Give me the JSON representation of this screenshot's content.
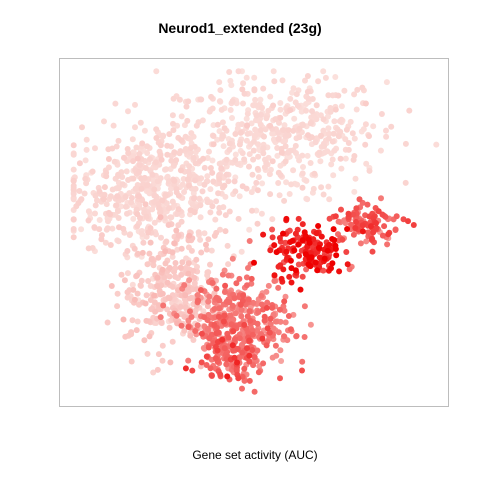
{
  "chart_data": {
    "type": "scatter",
    "title": "Neurod1_extended (23g)",
    "xlabel": "Gene set activity (AUC)",
    "ylabel": "",
    "grid": false,
    "legend": "none",
    "color_scale": {
      "low": "#fbe0dc",
      "high": "#ee0000"
    },
    "clusters": [
      {
        "name": "",
        "center": [
          0.55,
          0.8
        ],
        "spread": [
          0.15,
          0.09
        ],
        "count": 480,
        "activity": 0.03
      },
      {
        "name": "",
        "center": [
          0.22,
          0.62
        ],
        "spread": [
          0.11,
          0.09
        ],
        "count": 520,
        "activity": 0.04
      },
      {
        "name": "",
        "center": [
          0.28,
          0.32
        ],
        "spread": [
          0.07,
          0.09
        ],
        "count": 330,
        "activity": 0.1
      },
      {
        "name": "",
        "center": [
          0.46,
          0.22
        ],
        "spread": [
          0.07,
          0.07
        ],
        "count": 360,
        "activity": 0.45
      },
      {
        "name": "",
        "center": [
          0.64,
          0.44
        ],
        "spread": [
          0.05,
          0.04
        ],
        "count": 160,
        "activity": 0.82
      },
      {
        "name": "",
        "center": [
          0.8,
          0.52
        ],
        "spread": [
          0.05,
          0.03
        ],
        "count": 100,
        "activity": 0.6
      },
      {
        "name": "",
        "center": [
          0.44,
          0.12
        ],
        "spread": [
          0.04,
          0.04
        ],
        "count": 110,
        "activity": 0.55
      }
    ]
  }
}
